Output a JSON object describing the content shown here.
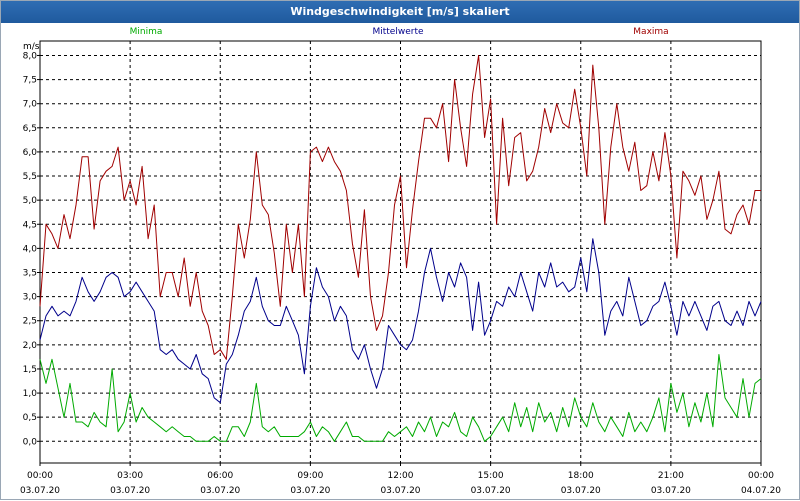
{
  "window": {
    "title": "Windgeschwindigkeit [m/s] skaliert"
  },
  "chart_data": {
    "type": "line",
    "title": "Windgeschwindigkeit [m/s] skaliert",
    "ylabel": "m/s",
    "xlabel": "",
    "ylim": [
      -0.45,
      8.3
    ],
    "yticks": [
      0.0,
      0.5,
      1.0,
      1.5,
      2.0,
      2.5,
      3.0,
      3.5,
      4.0,
      4.5,
      5.0,
      5.5,
      6.0,
      6.5,
      7.0,
      7.5,
      8.0
    ],
    "ytick_labels": [
      "0,0",
      "0,5",
      "1,0",
      "1,5",
      "2,0",
      "2,5",
      "3,0",
      "3,5",
      "4,0",
      "4,5",
      "5,0",
      "5,5",
      "6,0",
      "6,5",
      "7,0",
      "7,5",
      "8,0"
    ],
    "xlim": [
      0,
      24
    ],
    "x_unit": "hours since 03.07.20 00:00",
    "xticks": [
      {
        "time": "00:00",
        "date": "03.07.20"
      },
      {
        "time": "03:00",
        "date": "03.07.20"
      },
      {
        "time": "06:00",
        "date": "03.07.20"
      },
      {
        "time": "09:00",
        "date": "03.07.20"
      },
      {
        "time": "12:00",
        "date": "03.07.20"
      },
      {
        "time": "15:00",
        "date": "03.07.20"
      },
      {
        "time": "18:00",
        "date": "03.07.20"
      },
      {
        "time": "21:00",
        "date": "03.07.20"
      },
      {
        "time": "00:00",
        "date": "04.07.20"
      }
    ],
    "grid": true,
    "x": [
      0.0,
      0.2,
      0.4,
      0.6,
      0.8,
      1.0,
      1.2,
      1.4,
      1.6,
      1.8,
      2.0,
      2.2,
      2.4,
      2.6,
      2.8,
      3.0,
      3.2,
      3.4,
      3.6,
      3.8,
      4.0,
      4.2,
      4.4,
      4.6,
      4.8,
      5.0,
      5.2,
      5.4,
      5.6,
      5.8,
      6.0,
      6.2,
      6.4,
      6.6,
      6.8,
      7.0,
      7.2,
      7.4,
      7.6,
      7.8,
      8.0,
      8.2,
      8.4,
      8.6,
      8.8,
      9.0,
      9.2,
      9.4,
      9.6,
      9.8,
      10.0,
      10.2,
      10.4,
      10.6,
      10.8,
      11.0,
      11.2,
      11.4,
      11.6,
      11.8,
      12.0,
      12.2,
      12.4,
      12.6,
      12.8,
      13.0,
      13.2,
      13.4,
      13.6,
      13.8,
      14.0,
      14.2,
      14.4,
      14.6,
      14.8,
      15.0,
      15.2,
      15.4,
      15.6,
      15.8,
      16.0,
      16.2,
      16.4,
      16.6,
      16.8,
      17.0,
      17.2,
      17.4,
      17.6,
      17.8,
      18.0,
      18.2,
      18.4,
      18.6,
      18.8,
      19.0,
      19.2,
      19.4,
      19.6,
      19.8,
      20.0,
      20.2,
      20.4,
      20.6,
      20.8,
      21.0,
      21.2,
      21.4,
      21.6,
      21.8,
      22.0,
      22.2,
      22.4,
      22.6,
      22.8,
      23.0,
      23.2,
      23.4,
      23.6,
      23.8,
      24.0
    ],
    "series": [
      {
        "name": "Maxima",
        "color": "#a00000",
        "values": [
          2.8,
          4.5,
          4.3,
          4.0,
          4.7,
          4.2,
          4.9,
          5.9,
          5.9,
          4.4,
          5.4,
          5.6,
          5.7,
          6.1,
          5.0,
          5.4,
          4.9,
          5.7,
          4.2,
          4.9,
          3.0,
          3.5,
          3.5,
          3.0,
          3.8,
          2.8,
          3.5,
          2.7,
          2.4,
          1.8,
          1.9,
          1.7,
          3.0,
          4.5,
          3.8,
          4.6,
          6.0,
          4.9,
          4.7,
          3.9,
          2.8,
          4.5,
          3.5,
          4.5,
          3.0,
          6.0,
          6.1,
          5.8,
          6.1,
          5.8,
          5.6,
          5.2,
          4.1,
          3.4,
          4.8,
          3.0,
          2.3,
          2.6,
          3.5,
          4.9,
          5.5,
          3.6,
          4.8,
          5.8,
          6.7,
          6.7,
          6.5,
          7.0,
          5.8,
          7.5,
          6.5,
          5.7,
          7.2,
          8.0,
          6.3,
          7.1,
          4.5,
          6.7,
          5.3,
          6.3,
          6.4,
          5.4,
          5.6,
          6.1,
          6.9,
          6.4,
          7.0,
          6.6,
          6.5,
          7.3,
          6.5,
          5.5,
          7.8,
          6.5,
          4.5,
          6.1,
          7.0,
          6.1,
          5.6,
          6.2,
          5.2,
          5.3,
          6.0,
          5.4,
          6.4,
          5.5,
          3.8,
          5.6,
          5.4,
          5.1,
          5.5,
          4.6,
          5.0,
          5.6,
          4.4,
          4.3,
          4.7,
          4.9,
          4.5,
          5.2,
          5.2
        ]
      },
      {
        "name": "Mittelwerte",
        "color": "#00008b",
        "values": [
          2.1,
          2.6,
          2.8,
          2.6,
          2.7,
          2.6,
          2.9,
          3.4,
          3.1,
          2.9,
          3.1,
          3.4,
          3.5,
          3.4,
          3.0,
          3.1,
          3.3,
          3.1,
          2.9,
          2.7,
          1.9,
          1.8,
          1.9,
          1.7,
          1.6,
          1.5,
          1.8,
          1.4,
          1.3,
          0.9,
          0.8,
          1.6,
          1.8,
          2.2,
          2.7,
          2.9,
          3.4,
          2.8,
          2.5,
          2.4,
          2.4,
          2.8,
          2.5,
          2.2,
          1.4,
          2.8,
          3.6,
          3.2,
          3.0,
          2.5,
          2.8,
          2.6,
          1.9,
          1.7,
          2.0,
          1.5,
          1.1,
          1.5,
          2.4,
          2.2,
          2.0,
          1.9,
          2.1,
          2.7,
          3.5,
          4.0,
          3.4,
          2.9,
          3.5,
          3.2,
          3.7,
          3.4,
          2.3,
          3.3,
          2.2,
          2.5,
          2.9,
          2.8,
          3.2,
          3.0,
          3.5,
          3.1,
          2.7,
          3.5,
          3.2,
          3.7,
          3.2,
          3.3,
          3.1,
          3.2,
          3.8,
          3.1,
          4.2,
          3.5,
          2.2,
          2.7,
          2.9,
          2.6,
          3.4,
          2.9,
          2.4,
          2.5,
          2.8,
          2.9,
          3.3,
          2.8,
          2.2,
          2.9,
          2.6,
          2.9,
          2.6,
          2.3,
          2.8,
          2.9,
          2.5,
          2.4,
          2.7,
          2.4,
          2.9,
          2.6,
          2.9
        ]
      },
      {
        "name": "Minima",
        "color": "#00aa00",
        "values": [
          1.7,
          1.2,
          1.7,
          1.1,
          0.5,
          1.2,
          0.4,
          0.4,
          0.3,
          0.6,
          0.4,
          0.3,
          1.5,
          0.2,
          0.4,
          1.0,
          0.4,
          0.7,
          0.5,
          0.4,
          0.3,
          0.2,
          0.3,
          0.2,
          0.1,
          0.1,
          0.0,
          0.0,
          0.0,
          0.1,
          0.0,
          0.0,
          0.3,
          0.3,
          0.1,
          0.4,
          1.2,
          0.3,
          0.2,
          0.3,
          0.1,
          0.1,
          0.1,
          0.1,
          0.2,
          0.4,
          0.1,
          0.3,
          0.2,
          0.0,
          0.2,
          0.4,
          0.1,
          0.1,
          0.0,
          0.0,
          0.0,
          0.0,
          0.2,
          0.1,
          0.2,
          0.3,
          0.1,
          0.4,
          0.2,
          0.5,
          0.1,
          0.4,
          0.3,
          0.6,
          0.2,
          0.1,
          0.5,
          0.3,
          0.0,
          0.1,
          0.3,
          0.5,
          0.2,
          0.8,
          0.3,
          0.7,
          0.2,
          0.8,
          0.4,
          0.6,
          0.2,
          0.7,
          0.3,
          0.9,
          0.5,
          0.3,
          0.8,
          0.4,
          0.2,
          0.5,
          0.3,
          0.1,
          0.6,
          0.2,
          0.4,
          0.2,
          0.5,
          0.9,
          0.2,
          1.2,
          0.6,
          1.0,
          0.3,
          0.8,
          0.4,
          1.0,
          0.3,
          1.8,
          0.9,
          0.7,
          0.5,
          1.3,
          0.5,
          1.2,
          1.3
        ]
      }
    ],
    "legend": {
      "placement": "top",
      "entries": [
        "Minima",
        "Mittelwerte",
        "Maxima"
      ]
    }
  }
}
